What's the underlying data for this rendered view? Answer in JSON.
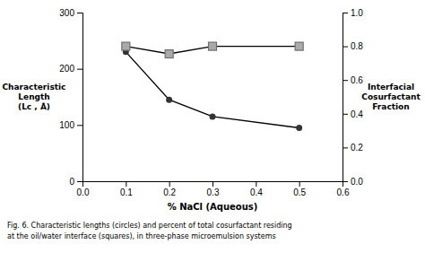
{
  "chart_data": {
    "type": "line",
    "x_label": "% NaCl (Aqueous)",
    "y_label": [
      "Characteristic",
      "Length",
      "(Lc , Å)"
    ],
    "y2_label": [
      "Interfacial",
      "Cosurfactant",
      "Fraction"
    ],
    "caption": [
      "Fig. 6. Characteristic lengths (circles) and percent of total cosurfactant residing",
      "at the oil/water interface (squares), in three-phase microemulsion systems"
    ],
    "x": [
      0.1,
      0.2,
      0.3,
      0.5
    ],
    "series": [
      {
        "values": [
          230,
          145,
          115,
          95
        ],
        "color": "#333333",
        "marker": "circle",
        "line_style": "solid"
      },
      {
        "values": [
          0.8,
          0.755,
          0.8,
          0.8
        ],
        "color": "#aaaaaa",
        "marker": "square",
        "line_style": "solid",
        "axis": "y2"
      }
    ],
    "xlim": [
      0.0,
      0.6
    ],
    "xticks": [
      {
        "value": 0,
        "label": "0.0"
      },
      0.1,
      0.2,
      0.3,
      0.4,
      0.5,
      0.6
    ],
    "ylim": [
      0,
      300
    ],
    "yticks": [
      0,
      100,
      200,
      300
    ],
    "y2lim": [
      0.0,
      1.0
    ],
    "y2ticks": [
      {
        "value": 0,
        "label": "0.0"
      },
      0.2,
      0.4,
      0.6,
      0.8,
      {
        "value": 1,
        "label": "1.0"
      }
    ],
    "grid": false
  }
}
